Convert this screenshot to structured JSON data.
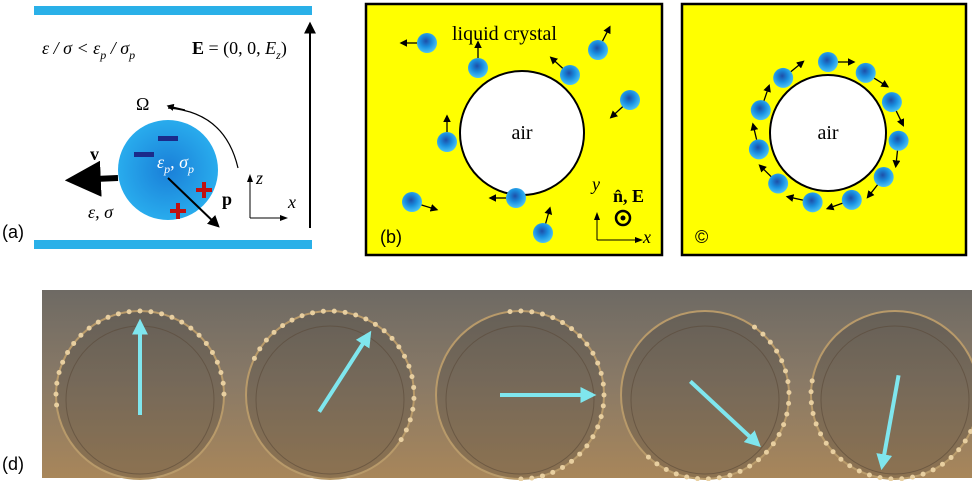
{
  "panel_a": {
    "label": "(a)",
    "condition": [
      "ε / σ < ε",
      "p",
      " / σ",
      "p"
    ],
    "field": [
      "E",
      " = (0, 0, ",
      "E",
      "z",
      ")"
    ],
    "omega": "Ω",
    "velocity": "v",
    "particle_props": [
      "ε",
      "p",
      ", σ",
      "p"
    ],
    "dipole": "p",
    "medium": "ε, σ",
    "axis_z": "z",
    "axis_x": "x"
  },
  "panel_b": {
    "label": "(b)",
    "medium": "liquid crystal",
    "bubble": "air",
    "axis_y": "y",
    "axis_x": "x",
    "director": "n̂, E"
  },
  "panel_c": {
    "label": "©",
    "bubble": "air"
  },
  "panel_d": {
    "label": "(d)"
  }
}
